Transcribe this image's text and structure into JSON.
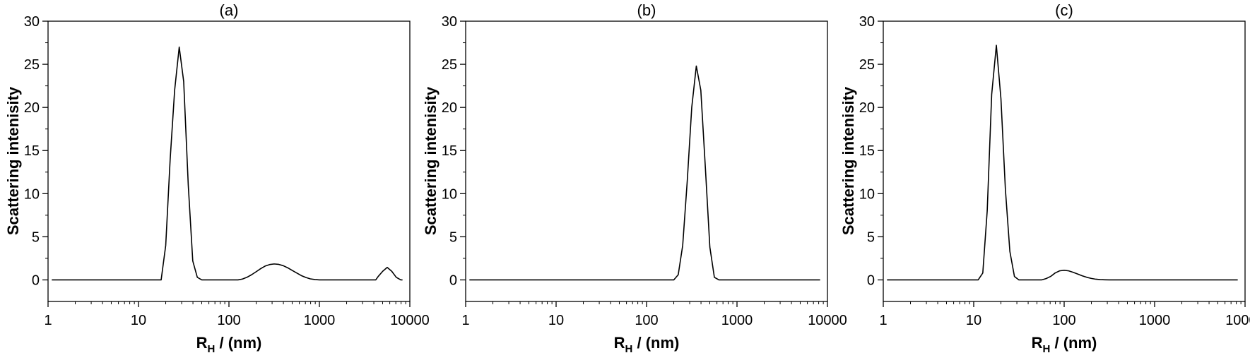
{
  "colors": {
    "axis": "#000000",
    "line": "#000000",
    "background": "#ffffff"
  },
  "chart_data": [
    {
      "type": "line",
      "title": "(a)",
      "xlabel_main": "R",
      "xlabel_sub": "H",
      "xlabel_tail": " / (nm)",
      "ylabel": "Scattering intenisity",
      "xscale": "log",
      "xlim": [
        1,
        10000
      ],
      "ylim": [
        -2.5,
        30
      ],
      "grid": false,
      "xticks": [
        "1",
        "10",
        "100",
        "1000",
        "10000"
      ],
      "yticks": [
        "0",
        "5",
        "10",
        "15",
        "20",
        "25",
        "30"
      ],
      "series": [
        {
          "x": [
            1.1,
            17.8,
            20.0,
            22.4,
            25.1,
            28.2,
            31.6,
            35.5,
            39.8,
            44.7,
            50.1,
            100,
            126,
            141,
            158,
            178,
            200,
            224,
            251,
            282,
            316,
            355,
            398,
            447,
            501,
            562,
            631,
            708,
            794,
            891,
            1000,
            1122,
            4200,
            4470,
            5010,
            5620,
            6310,
            7080,
            7940,
            8300
          ],
          "y": [
            0,
            0,
            4.0,
            14.0,
            22.0,
            27.0,
            23.0,
            11.0,
            2.2,
            0.3,
            0,
            0,
            0,
            0.1,
            0.3,
            0.6,
            0.95,
            1.3,
            1.6,
            1.78,
            1.85,
            1.8,
            1.65,
            1.4,
            1.1,
            0.8,
            0.5,
            0.28,
            0.12,
            0.04,
            0,
            0,
            0,
            0.4,
            1.0,
            1.45,
            1.0,
            0.3,
            0,
            0
          ]
        }
      ]
    },
    {
      "type": "line",
      "title": "(b)",
      "xlabel_main": "R",
      "xlabel_sub": "H",
      "xlabel_tail": " / (nm)",
      "ylabel": "Scattering intenisity",
      "xscale": "log",
      "xlim": [
        1,
        10000
      ],
      "ylim": [
        -2.5,
        30
      ],
      "grid": false,
      "xticks": [
        "1",
        "10",
        "100",
        "1000",
        "10000"
      ],
      "yticks": [
        "0",
        "5",
        "10",
        "15",
        "20",
        "25",
        "30"
      ],
      "series": [
        {
          "x": [
            1.1,
            200,
            224,
            251,
            282,
            316,
            355,
            398,
            447,
            501,
            562,
            631,
            708,
            794,
            891,
            8300
          ],
          "y": [
            0,
            0,
            0.6,
            4.0,
            11.5,
            20.0,
            24.8,
            22.0,
            13.0,
            3.8,
            0.3,
            0,
            0,
            0,
            0,
            0
          ]
        }
      ]
    },
    {
      "type": "line",
      "title": "(c)",
      "xlabel_main": "R",
      "xlabel_sub": "H",
      "xlabel_tail": " / (nm)",
      "ylabel": "Scattering intenisity",
      "xscale": "log",
      "xlim": [
        1,
        10000
      ],
      "ylim": [
        -2.5,
        30
      ],
      "grid": false,
      "xticks": [
        "1",
        "10",
        "100",
        "1000",
        "10000"
      ],
      "yticks": [
        "0",
        "5",
        "10",
        "15",
        "20",
        "25",
        "30"
      ],
      "series": [
        {
          "x": [
            1.1,
            11.2,
            12.6,
            14.1,
            15.8,
            17.8,
            20.0,
            22.4,
            25.1,
            28.2,
            31.6,
            35.5,
            39.8,
            44.7,
            50.1,
            56.2,
            63.1,
            70.8,
            79.4,
            89.1,
            100,
            112,
            126,
            141,
            158,
            178,
            200,
            224,
            251,
            282,
            316,
            355,
            8300
          ],
          "y": [
            0,
            0,
            0.8,
            8.0,
            21.5,
            27.2,
            21.0,
            10.5,
            3.3,
            0.4,
            0,
            0,
            0,
            0,
            0,
            0,
            0.15,
            0.4,
            0.8,
            1.05,
            1.12,
            1.05,
            0.88,
            0.68,
            0.48,
            0.3,
            0.17,
            0.08,
            0.03,
            0.01,
            0,
            0,
            0
          ]
        }
      ]
    }
  ]
}
